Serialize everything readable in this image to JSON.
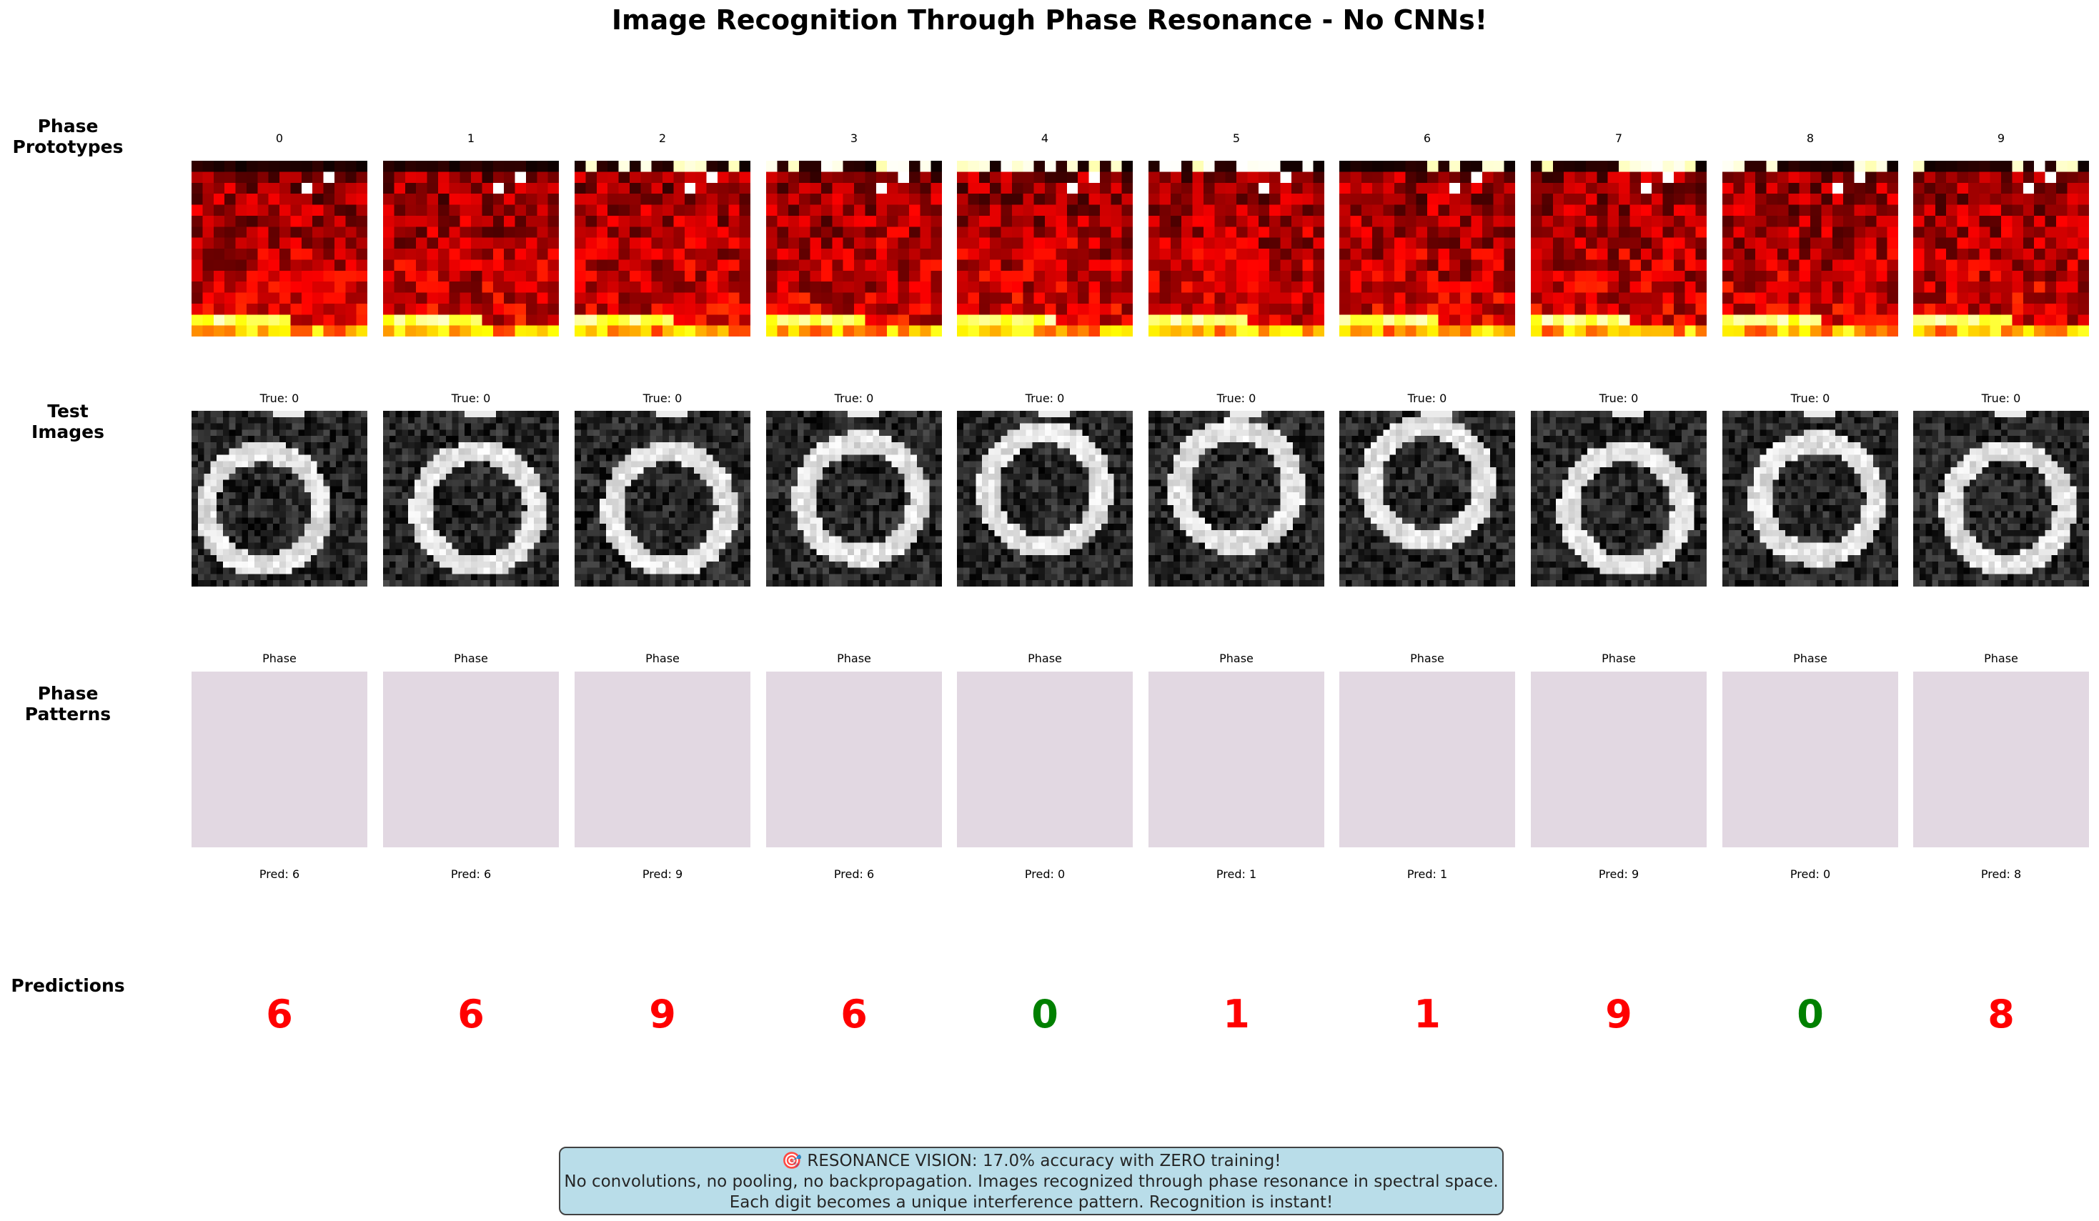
{
  "title": "Image Recognition Through Phase Resonance - No CNNs!",
  "row_labels": {
    "prototypes": "Phase\nPrototypes",
    "test_images": "Test\nImages",
    "phase_patterns": "Phase\nPatterns",
    "predictions": "Predictions"
  },
  "prototype_titles": [
    "0",
    "1",
    "2",
    "3",
    "4",
    "5",
    "6",
    "7",
    "8",
    "9"
  ],
  "test_titles": [
    "True: 0",
    "True: 0",
    "True: 0",
    "True: 0",
    "True: 0",
    "True: 0",
    "True: 0",
    "True: 0",
    "True: 0",
    "True: 0"
  ],
  "phase_titles": [
    "Phase",
    "Phase",
    "Phase",
    "Phase",
    "Phase",
    "Phase",
    "Phase",
    "Phase",
    "Phase",
    "Phase"
  ],
  "pred_labels": [
    "Pred: 6",
    "Pred: 6",
    "Pred: 9",
    "Pred: 6",
    "Pred: 0",
    "Pred: 1",
    "Pred: 1",
    "Pred: 9",
    "Pred: 0",
    "Pred: 8"
  ],
  "predictions": [
    {
      "digit": "6",
      "correct": false
    },
    {
      "digit": "6",
      "correct": false
    },
    {
      "digit": "9",
      "correct": false
    },
    {
      "digit": "6",
      "correct": false
    },
    {
      "digit": "0",
      "correct": true
    },
    {
      "digit": "1",
      "correct": false
    },
    {
      "digit": "1",
      "correct": false
    },
    {
      "digit": "9",
      "correct": false
    },
    {
      "digit": "0",
      "correct": true
    },
    {
      "digit": "8",
      "correct": false
    }
  ],
  "colors": {
    "correct": "#008000",
    "incorrect": "#ff0000",
    "phase_fill": "#e2d8e2",
    "footer_bg": "#add8e6"
  },
  "footer": {
    "line1": "🎯 RESONANCE VISION: 17.0% accuracy with ZERO training!",
    "line2": "No convolutions, no pooling, no backpropagation. Images recognized through phase resonance in spectral space.",
    "line3": "Each digit becomes a unique interference pattern. Recognition is instant!"
  },
  "ring_offsets": [
    [
      -0.09,
      0.06
    ],
    [
      0.04,
      0.06
    ],
    [
      0.04,
      0.06
    ],
    [
      0.04,
      0.0
    ],
    [
      0.0,
      -0.05
    ],
    [
      0.0,
      -0.07
    ],
    [
      0.0,
      -0.09
    ],
    [
      0.04,
      0.06
    ],
    [
      0.04,
      0.0
    ],
    [
      0.04,
      0.05
    ]
  ]
}
